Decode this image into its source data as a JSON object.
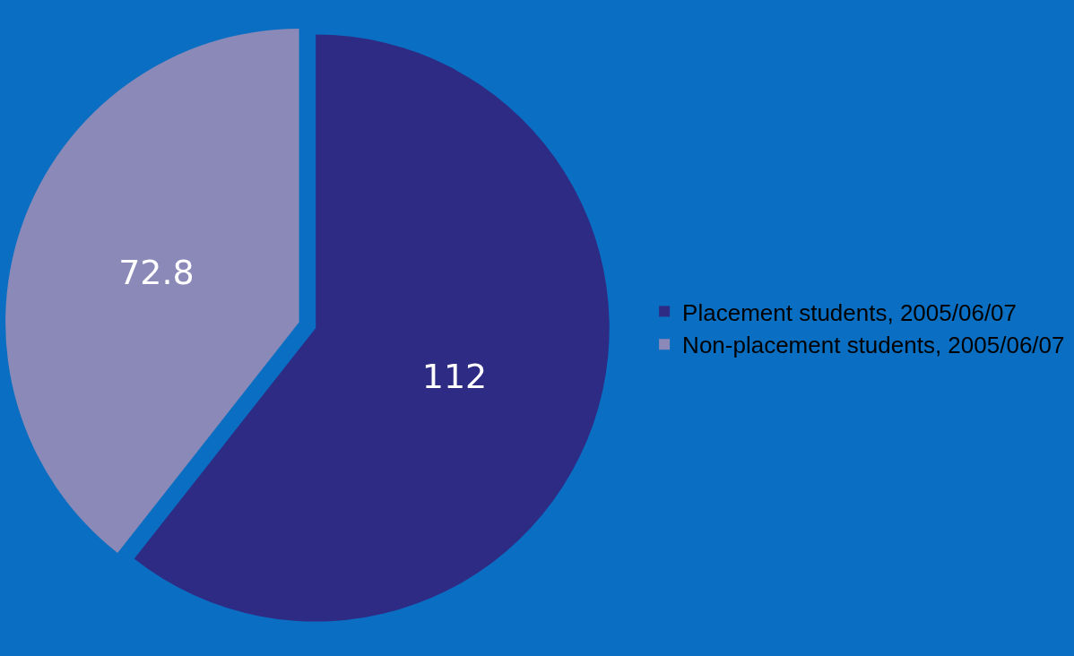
{
  "chart_data": {
    "type": "pie",
    "categories": [
      "Placement students, 2005/06/07",
      "Non-placement students, 2005/06/07"
    ],
    "values": [
      112,
      72.8
    ],
    "colors": [
      "#2e2b85",
      "#8a89b8"
    ],
    "data_labels": true,
    "legend": "right"
  }
}
